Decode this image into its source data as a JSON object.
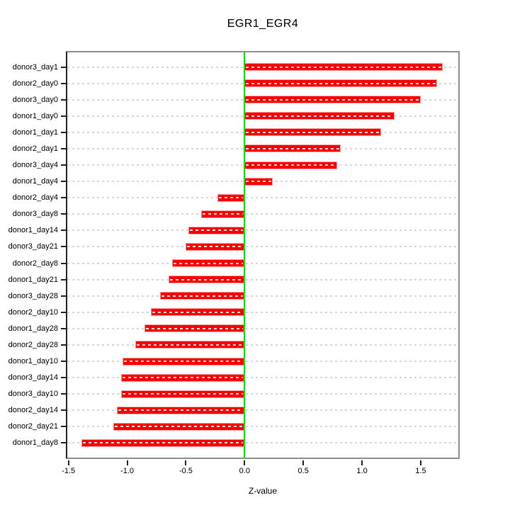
{
  "title": "EGR1_EGR4",
  "chart_data": {
    "type": "bar",
    "orientation": "horizontal",
    "title": "EGR1_EGR4",
    "xlabel": "Z-value",
    "categories": [
      "donor3_day1",
      "donor2_day0",
      "donor3_day0",
      "donor1_day0",
      "donor1_day1",
      "donor2_day1",
      "donor3_day4",
      "donor1_day4",
      "donor2_day4",
      "donor3_day8",
      "donor1_day14",
      "donor3_day21",
      "donor2_day8",
      "donor1_day21",
      "donor3_day28",
      "donor2_day10",
      "donor1_day28",
      "donor2_day28",
      "donor1_day10",
      "donor3_day14",
      "donor3_day10",
      "donor2_day14",
      "donor2_day21",
      "donor1_day8"
    ],
    "values": [
      1.69,
      1.64,
      1.5,
      1.28,
      1.16,
      0.82,
      0.79,
      0.24,
      -0.23,
      -0.37,
      -0.48,
      -0.5,
      -0.62,
      -0.65,
      -0.72,
      -0.8,
      -0.85,
      -0.93,
      -1.04,
      -1.05,
      -1.05,
      -1.09,
      -1.12,
      -1.39
    ],
    "xlim": [
      -1.51,
      1.82
    ],
    "xticks": [
      -1.5,
      -1.0,
      -0.5,
      0.0,
      0.5,
      1.0,
      1.5
    ],
    "xtick_labels": [
      "-1.5",
      "-1.0",
      "-0.5",
      "0.0",
      "0.5",
      "1.0",
      "1.5"
    ],
    "grid": true,
    "legend": "none",
    "colors": {
      "bar_fill": "#fb0000",
      "bar_border": "#ff9b9b",
      "bar_center_dash": "rgba(255,255,255,0.85)",
      "zero_line": "#00f000",
      "gridline": "#d7d7d7",
      "panel_border": "#8f8f8f",
      "axis_dark": "#262626",
      "text": "#000000",
      "background": "#ffffff"
    }
  }
}
